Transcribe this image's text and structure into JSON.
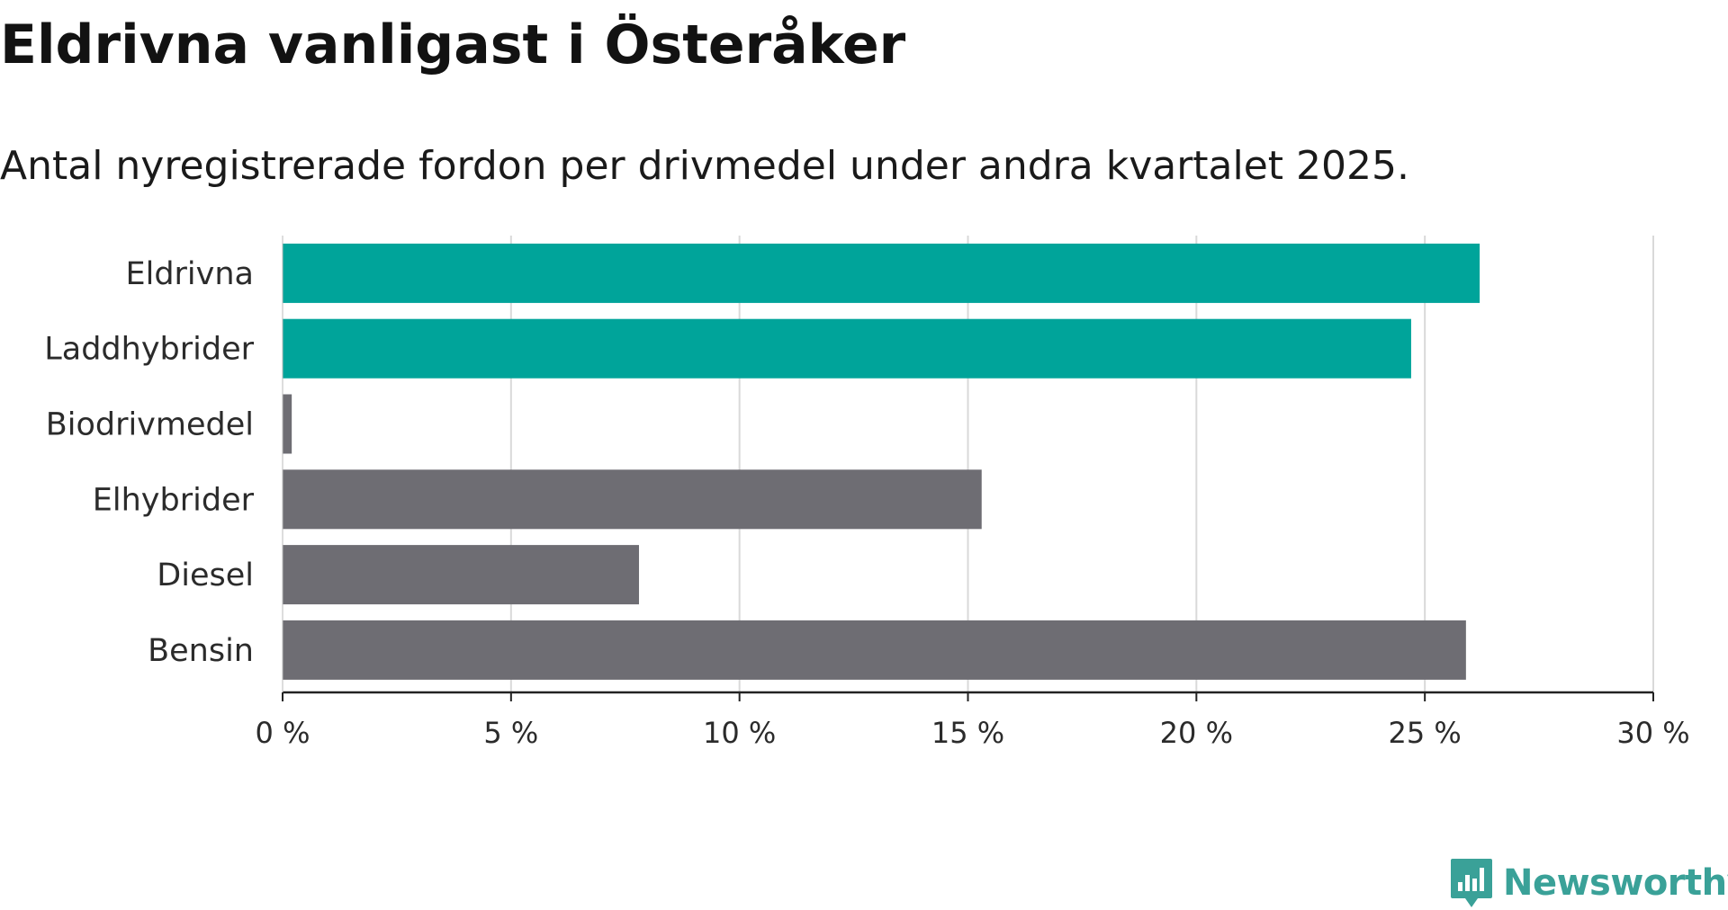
{
  "title": "Eldrivna vanligast i Österåker",
  "subtitle": "Antal nyregistrerade fordon per drivmedel under andra kvartalet 2025.",
  "colors": {
    "highlight": "#00a49a",
    "default": "#6e6d73",
    "grid": "#d9d9d9",
    "axis": "#222222",
    "brand": "#3aa198"
  },
  "chart_data": {
    "type": "bar",
    "orientation": "horizontal",
    "categories": [
      "Eldrivna",
      "Laddhybrider",
      "Biodrivmedel",
      "Elhybrider",
      "Diesel",
      "Bensin"
    ],
    "values": [
      26.2,
      24.7,
      0.2,
      15.3,
      7.8,
      25.9
    ],
    "highlighted": [
      true,
      true,
      false,
      false,
      false,
      false
    ],
    "unit": "%",
    "xlim": [
      0,
      30
    ],
    "xticks": [
      0,
      5,
      10,
      15,
      20,
      25,
      30
    ],
    "xtick_labels": [
      "0 %",
      "5 %",
      "10 %",
      "15 %",
      "20 %",
      "25 %",
      "30 %"
    ],
    "grid": true
  },
  "brand": {
    "name": "Newsworthy",
    "icon": "newsworthy-logo-icon"
  }
}
